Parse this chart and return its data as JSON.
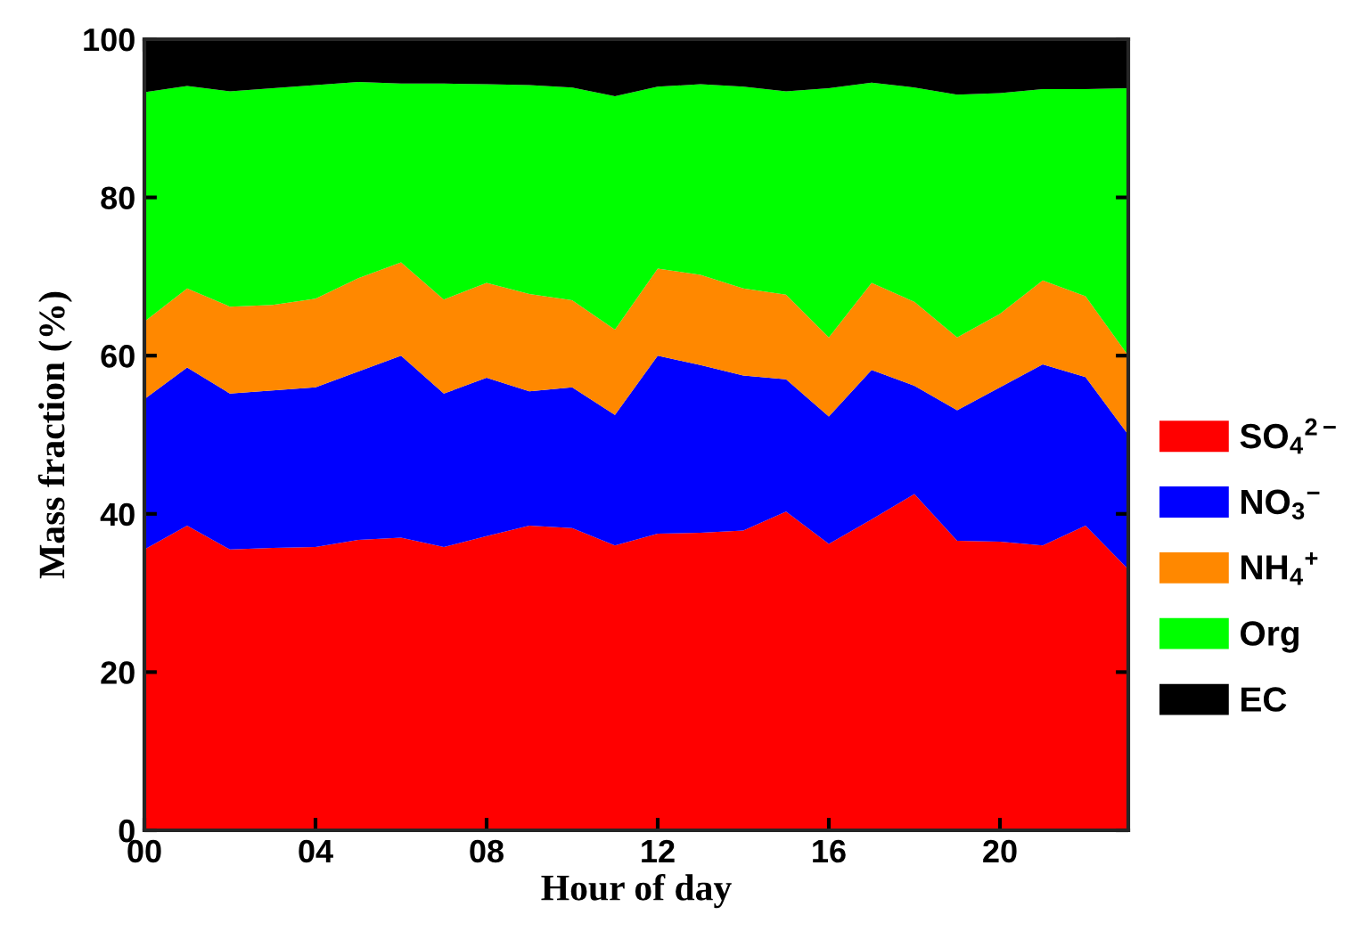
{
  "chart_data": {
    "type": "area",
    "stacked": true,
    "xlabel": "Hour of day",
    "ylabel": "Mass fraction (%)",
    "x": [
      0,
      1,
      2,
      3,
      4,
      5,
      6,
      7,
      8,
      9,
      10,
      11,
      12,
      13,
      14,
      15,
      16,
      17,
      18,
      19,
      20,
      21,
      22,
      23
    ],
    "xlim": [
      0,
      23
    ],
    "ylim": [
      0,
      100
    ],
    "xticks": [
      {
        "value": 0,
        "label": "00"
      },
      {
        "value": 4,
        "label": "04"
      },
      {
        "value": 8,
        "label": "08"
      },
      12,
      16,
      20
    ],
    "yticks": [
      0,
      20,
      40,
      60,
      80,
      100
    ],
    "grid": false,
    "legend": "right",
    "series": [
      {
        "name": "SO$_{4}$$^{2−}$",
        "color": "#ff0000",
        "values": [
          35.5,
          38.5,
          35.5,
          35.7,
          35.8,
          36.7,
          37.0,
          35.8,
          37.2,
          38.5,
          38.2,
          36.0,
          37.5,
          37.6,
          37.9,
          40.3,
          36.2,
          39.3,
          42.5,
          36.6,
          36.5,
          36.0,
          38.5,
          33.0
        ]
      },
      {
        "name": "NO$_{3}$$^{−}$",
        "color": "#0000ff",
        "values": [
          19.0,
          20.0,
          19.7,
          19.9,
          20.2,
          21.3,
          23.0,
          19.4,
          20.0,
          17.0,
          17.8,
          16.5,
          22.5,
          21.2,
          19.6,
          16.7,
          16.1,
          18.9,
          13.7,
          16.5,
          19.5,
          22.9,
          18.8,
          17.0
        ]
      },
      {
        "name": "NH$_{4}$$^{+}$",
        "color": "#ff8800",
        "values": [
          9.8,
          10.0,
          11.0,
          10.8,
          11.2,
          11.8,
          11.8,
          11.9,
          12.0,
          12.3,
          11.0,
          10.8,
          11.0,
          11.4,
          11.0,
          10.7,
          10.0,
          11.0,
          10.6,
          9.2,
          9.3,
          10.6,
          10.2,
          10.0
        ]
      },
      {
        "name": "Org",
        "color": "#00ff00",
        "values": [
          29.0,
          25.6,
          27.2,
          27.4,
          27.0,
          24.8,
          22.6,
          27.3,
          25.1,
          26.4,
          26.9,
          29.5,
          23.0,
          24.1,
          25.5,
          25.7,
          31.5,
          25.3,
          27.1,
          30.7,
          27.9,
          24.2,
          26.2,
          33.8
        ]
      },
      {
        "name": "EC",
        "color": "#000000",
        "values": [
          6.7,
          5.9,
          6.6,
          6.2,
          5.8,
          5.4,
          5.6,
          5.6,
          5.7,
          5.8,
          6.1,
          7.2,
          6.0,
          5.7,
          6.0,
          6.6,
          6.2,
          5.5,
          6.1,
          7.0,
          6.8,
          6.3,
          6.3,
          6.2
        ]
      }
    ]
  }
}
